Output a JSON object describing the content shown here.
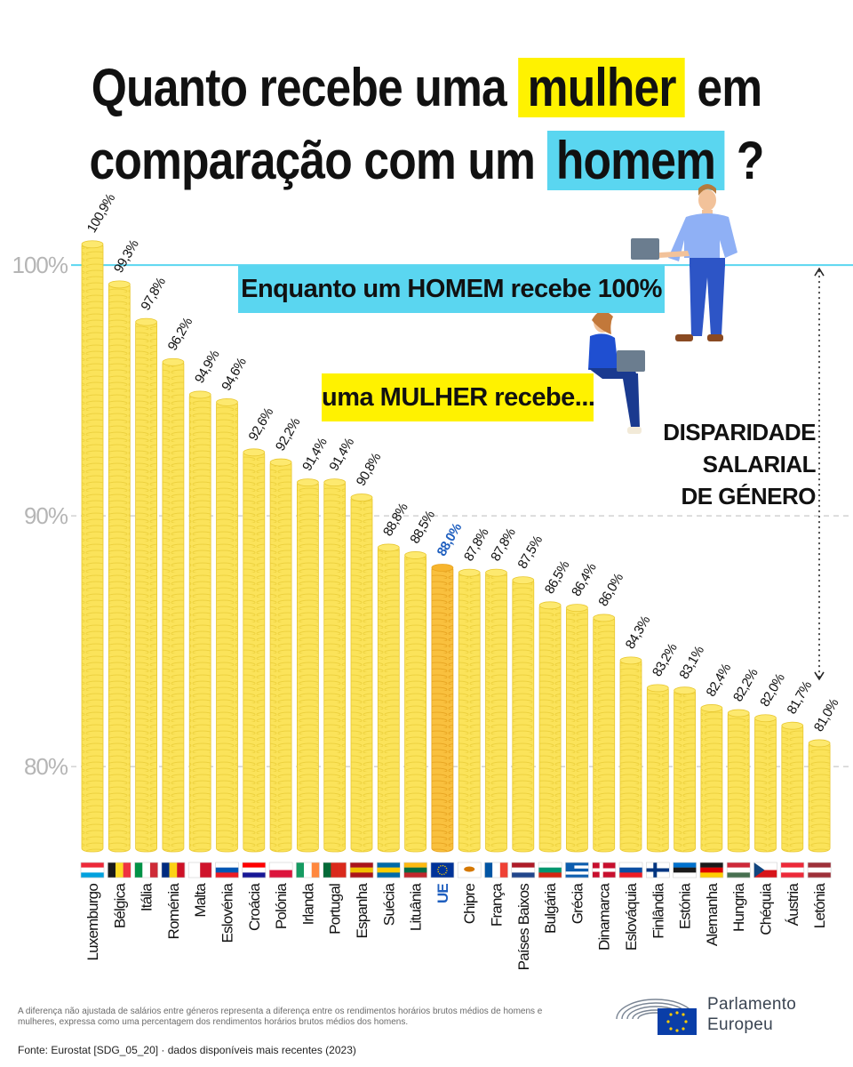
{
  "title": {
    "line1_pre": "Quanto recebe uma",
    "line1_highlight": "mulher",
    "line1_post": "em",
    "line2_pre": "comparação com um",
    "line2_highlight": "homem",
    "line2_post": "?"
  },
  "banners": {
    "men": "Enquanto um HOMEM recebe 100%",
    "women": "uma MULHER recebe..."
  },
  "gap_label": [
    "DISPARIDADE",
    "SALARIAL",
    "DE GÉNERO"
  ],
  "chart_data": {
    "type": "bar",
    "categories": [
      "Luxemburgo",
      "Bélgica",
      "Itália",
      "Roménia",
      "Malta",
      "Eslovénia",
      "Croácia",
      "Polónia",
      "Irlanda",
      "Portugal",
      "Espanha",
      "Suécia",
      "Lituânia",
      "UE",
      "Chipre",
      "França",
      "Países Baixos",
      "Bulgária",
      "Grécia",
      "Dinamarca",
      "Eslováquia",
      "Finlândia",
      "Estónia",
      "Alemanha",
      "Hungria",
      "Chéquia",
      "Áustria",
      "Letónia"
    ],
    "values": [
      100.9,
      99.3,
      97.8,
      96.2,
      94.9,
      94.6,
      92.6,
      92.2,
      91.4,
      91.4,
      90.8,
      88.8,
      88.5,
      88.0,
      87.8,
      87.8,
      87.5,
      86.5,
      86.4,
      86.0,
      84.3,
      83.2,
      83.1,
      82.4,
      82.2,
      82.0,
      81.7,
      81.0
    ],
    "value_labels": [
      "100,9%",
      "99,3%",
      "97,8%",
      "96,2%",
      "94,9%",
      "94,6%",
      "92,6%",
      "92,2%",
      "91,4%",
      "91,4%",
      "90,8%",
      "88,8%",
      "88,5%",
      "88,0%",
      "87,8%",
      "87,8%",
      "87,5%",
      "86,5%",
      "86,4%",
      "86,0%",
      "84,3%",
      "83,2%",
      "83,1%",
      "82,4%",
      "82,2%",
      "82,0%",
      "81,7%",
      "81,0%"
    ],
    "highlight_category": "UE",
    "y_ticks": [
      {
        "value": 100,
        "label": "100%"
      },
      {
        "value": 90,
        "label": "90%"
      },
      {
        "value": 80,
        "label": "80%"
      }
    ],
    "ylim": [
      76.6,
      102
    ],
    "grid": true,
    "reference_line": 100
  },
  "flags": [
    {
      "country": "Luxemburgo",
      "colors": [
        "#ed2939",
        "#ffffff",
        "#00a1de"
      ],
      "orient": "h"
    },
    {
      "country": "Bélgica",
      "colors": [
        "#1a1a1a",
        "#fdda24",
        "#ef3340"
      ],
      "orient": "v"
    },
    {
      "country": "Itália",
      "colors": [
        "#009246",
        "#ffffff",
        "#ce2b37"
      ],
      "orient": "v"
    },
    {
      "country": "Roménia",
      "colors": [
        "#002b7f",
        "#fcd116",
        "#ce1126"
      ],
      "orient": "v"
    },
    {
      "country": "Malta",
      "colors": [
        "#ffffff",
        "#cf142b"
      ],
      "orient": "v"
    },
    {
      "country": "Eslovénia",
      "colors": [
        "#ffffff",
        "#0056b3",
        "#ed1c24"
      ],
      "orient": "h"
    },
    {
      "country": "Croácia",
      "colors": [
        "#ff0000",
        "#ffffff",
        "#171796"
      ],
      "orient": "h"
    },
    {
      "country": "Polónia",
      "colors": [
        "#ffffff",
        "#dc143c"
      ],
      "orient": "h"
    },
    {
      "country": "Irlanda",
      "colors": [
        "#169b62",
        "#ffffff",
        "#ff883e"
      ],
      "orient": "v"
    },
    {
      "country": "Portugal",
      "colors": [
        "#046a38",
        "#da291c",
        "#da291c"
      ],
      "orient": "v"
    },
    {
      "country": "Espanha",
      "colors": [
        "#aa151b",
        "#f1bf00",
        "#aa151b"
      ],
      "orient": "h"
    },
    {
      "country": "Suécia",
      "colors": [
        "#006aa7",
        "#fecc00",
        "#006aa7"
      ],
      "orient": "h"
    },
    {
      "country": "Lituânia",
      "colors": [
        "#fdb913",
        "#006a44",
        "#c1272d"
      ],
      "orient": "h"
    },
    {
      "country": "UE",
      "colors": [
        "#003399",
        "#ffcc00"
      ],
      "orient": "eu"
    },
    {
      "country": "Chipre",
      "colors": [
        "#ffffff",
        "#d57800"
      ],
      "orient": "cy"
    },
    {
      "country": "França",
      "colors": [
        "#0055a4",
        "#ffffff",
        "#ef4135"
      ],
      "orient": "v"
    },
    {
      "country": "Países Baixos",
      "colors": [
        "#ae1c28",
        "#ffffff",
        "#21468b"
      ],
      "orient": "h"
    },
    {
      "country": "Bulgária",
      "colors": [
        "#ffffff",
        "#00966e",
        "#d62612"
      ],
      "orient": "h"
    },
    {
      "country": "Grécia",
      "colors": [
        "#0d5eaf",
        "#ffffff",
        "#0d5eaf",
        "#ffffff",
        "#0d5eaf"
      ],
      "orient": "h"
    },
    {
      "country": "Dinamarca",
      "colors": [
        "#c8102e",
        "#ffffff"
      ],
      "orient": "cross"
    },
    {
      "country": "Eslováquia",
      "colors": [
        "#ffffff",
        "#0b4ea2",
        "#ee1c25"
      ],
      "orient": "h"
    },
    {
      "country": "Finlândia",
      "colors": [
        "#ffffff",
        "#003580"
      ],
      "orient": "cross"
    },
    {
      "country": "Estónia",
      "colors": [
        "#0072ce",
        "#1a1a1a",
        "#ffffff"
      ],
      "orient": "h"
    },
    {
      "country": "Alemanha",
      "colors": [
        "#1a1a1a",
        "#dd0000",
        "#ffce00"
      ],
      "orient": "h"
    },
    {
      "country": "Hungria",
      "colors": [
        "#ce2939",
        "#ffffff",
        "#477050"
      ],
      "orient": "h"
    },
    {
      "country": "Chéquia",
      "colors": [
        "#ffffff",
        "#d7141a",
        "#11457e"
      ],
      "orient": "cz"
    },
    {
      "country": "Áustria",
      "colors": [
        "#ed2939",
        "#ffffff",
        "#ed2939"
      ],
      "orient": "h"
    },
    {
      "country": "Letónia",
      "colors": [
        "#9e3039",
        "#ffffff",
        "#9e3039"
      ],
      "orient": "h"
    }
  ],
  "colors": {
    "coin": "#fbe35a",
    "coin_edge": "#e8c730",
    "coin_highlight": "#f9bd3a",
    "ue_label": "#1f5fbf",
    "reference_line": "#5ad6f0",
    "title_highlight_women": "#fff200",
    "title_highlight_men": "#5ad6f0"
  },
  "footnote": "A diferença não ajustada de salários entre géneros representa a diferença entre os rendimentos horários brutos médios de homens e mulheres, expressa como uma percentagem dos rendimentos horários brutos médios dos homens.",
  "source": "Fonte: Eurostat [SDG_05_20] · dados disponíveis mais recentes (2023)",
  "logo": {
    "line1": "Parlamento",
    "line2": "Europeu"
  }
}
